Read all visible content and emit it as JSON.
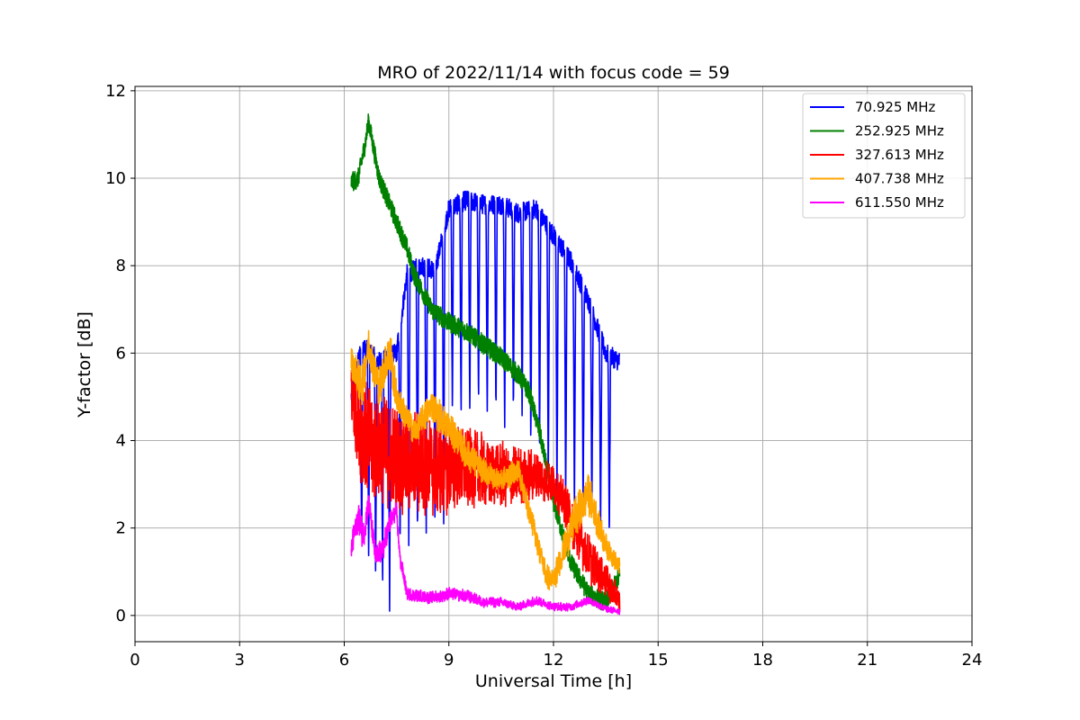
{
  "chart_data": {
    "type": "line",
    "title": "MRO of 2022/11/14 with focus code = 59",
    "xlabel": "Universal Time [h]",
    "ylabel": "Y-factor [dB]",
    "xlim": [
      0,
      24
    ],
    "ylim": [
      -0.6,
      12.1
    ],
    "xticks": [
      0,
      3,
      6,
      9,
      12,
      15,
      18,
      21,
      24
    ],
    "yticks": [
      0,
      2,
      4,
      6,
      8,
      10,
      12
    ],
    "xtick_labels": [
      "0",
      "3",
      "6",
      "9",
      "12",
      "15",
      "18",
      "21",
      "24"
    ],
    "ytick_labels": [
      "0",
      "2",
      "4",
      "6",
      "8",
      "10",
      "12"
    ],
    "grid": true,
    "legend_position": "top-right",
    "series": [
      {
        "name": "  70.925 MHz",
        "color": "#0000ff",
        "x": [
          6.2,
          6.5,
          7.0,
          7.5,
          7.8,
          8.2,
          8.6,
          9.0,
          9.5,
          10.0,
          10.5,
          11.0,
          11.5,
          12.0,
          12.5,
          13.0,
          13.5,
          13.9
        ],
        "y": [
          5.0,
          6.2,
          5.8,
          6.0,
          7.8,
          8.0,
          7.9,
          9.3,
          9.5,
          9.4,
          9.4,
          9.2,
          9.3,
          8.7,
          8.1,
          7.2,
          6.0,
          5.8
        ],
        "dips": [
          [
            6.5,
            1.5
          ],
          [
            6.7,
            1.3
          ],
          [
            6.9,
            0.8
          ],
          [
            7.1,
            0.5
          ],
          [
            7.3,
            0.1
          ],
          [
            7.6,
            1.5
          ],
          [
            7.85,
            1.6
          ],
          [
            8.1,
            1.7
          ],
          [
            8.35,
            1.8
          ],
          [
            8.6,
            1.9
          ],
          [
            8.85,
            1.9
          ],
          [
            9.1,
            4.6
          ],
          [
            9.35,
            4.5
          ],
          [
            9.6,
            4.6
          ],
          [
            9.85,
            4.8
          ],
          [
            10.1,
            4.6
          ],
          [
            10.35,
            4.6
          ],
          [
            10.6,
            4.3
          ],
          [
            10.85,
            4.6
          ],
          [
            11.1,
            4.5
          ],
          [
            11.35,
            3.8
          ],
          [
            11.6,
            3.8
          ],
          [
            11.85,
            2.9
          ],
          [
            12.1,
            2.6
          ],
          [
            12.35,
            2.5
          ],
          [
            12.6,
            2.3
          ],
          [
            12.85,
            2.2
          ],
          [
            13.1,
            2.2
          ],
          [
            13.35,
            1.9
          ],
          [
            13.6,
            1.7
          ]
        ]
      },
      {
        "name": "252.925 MHz",
        "color": "#008000",
        "x": [
          6.2,
          6.4,
          6.6,
          6.7,
          7.0,
          7.5,
          7.8,
          8.0,
          8.5,
          9.0,
          9.5,
          10.0,
          10.5,
          11.0,
          11.3,
          11.6,
          12.0,
          12.5,
          13.0,
          13.5,
          13.9
        ],
        "y": [
          9.9,
          10.0,
          10.8,
          11.3,
          10.0,
          9.0,
          8.4,
          7.8,
          7.0,
          6.7,
          6.5,
          6.2,
          5.9,
          5.5,
          5.1,
          4.2,
          2.6,
          1.2,
          0.5,
          0.3,
          0.9
        ]
      },
      {
        "name": "327.613 MHz",
        "color": "#ff0000",
        "x": [
          6.2,
          6.4,
          6.6,
          7.0,
          7.5,
          8.0,
          8.5,
          9.0,
          9.5,
          10.0,
          10.5,
          11.0,
          11.5,
          12.0,
          12.3,
          12.6,
          13.0,
          13.5,
          13.9
        ],
        "y": [
          5.2,
          4.5,
          4.1,
          3.8,
          3.6,
          3.5,
          3.4,
          3.4,
          3.3,
          3.3,
          3.2,
          3.2,
          3.2,
          3.0,
          2.6,
          2.0,
          1.3,
          0.8,
          0.3
        ],
        "amp": [
          1.2,
          1.3,
          1.4,
          1.4,
          1.3,
          1.3,
          1.2,
          1.1,
          1.0,
          0.9,
          0.8,
          0.7,
          0.6,
          0.5,
          0.5,
          0.6,
          0.6,
          0.4,
          0.3
        ]
      },
      {
        "name": "407.738 MHz",
        "color": "#ffa500",
        "x": [
          6.2,
          6.5,
          6.7,
          7.0,
          7.3,
          7.5,
          8.0,
          8.5,
          9.0,
          9.5,
          10.0,
          10.5,
          11.0,
          11.5,
          11.8,
          12.0,
          12.3,
          12.6,
          13.0,
          13.5,
          13.9
        ],
        "y": [
          5.8,
          5.2,
          6.2,
          5.2,
          6.1,
          5.0,
          4.2,
          4.8,
          4.3,
          3.7,
          3.3,
          3.1,
          3.3,
          1.8,
          0.9,
          0.8,
          1.5,
          2.2,
          2.8,
          1.6,
          1.1
        ],
        "amp": [
          0.4,
          0.5,
          0.5,
          0.5,
          0.6,
          0.4,
          0.3,
          0.4,
          0.4,
          0.4,
          0.3,
          0.3,
          0.3,
          0.3,
          0.3,
          0.3,
          0.4,
          0.5,
          0.5,
          0.3,
          0.2
        ]
      },
      {
        "name": "611.550 MHz",
        "color": "#ff00ff",
        "x": [
          6.2,
          6.4,
          6.55,
          6.7,
          6.9,
          7.1,
          7.3,
          7.5,
          7.6,
          7.8,
          8.5,
          9.0,
          9.5,
          10.0,
          10.5,
          11.0,
          11.5,
          12.0,
          12.5,
          13.0,
          13.5,
          13.9
        ],
        "y": [
          1.5,
          2.3,
          1.8,
          2.6,
          1.3,
          1.5,
          2.1,
          2.4,
          1.3,
          0.5,
          0.4,
          0.5,
          0.45,
          0.3,
          0.3,
          0.2,
          0.35,
          0.2,
          0.2,
          0.35,
          0.15,
          0.1
        ],
        "amp": [
          0.3,
          0.4,
          0.4,
          0.3,
          0.3,
          0.3,
          0.3,
          0.2,
          0.2,
          0.15,
          0.15,
          0.15,
          0.15,
          0.12,
          0.12,
          0.1,
          0.12,
          0.1,
          0.1,
          0.1,
          0.08,
          0.08
        ]
      }
    ]
  }
}
